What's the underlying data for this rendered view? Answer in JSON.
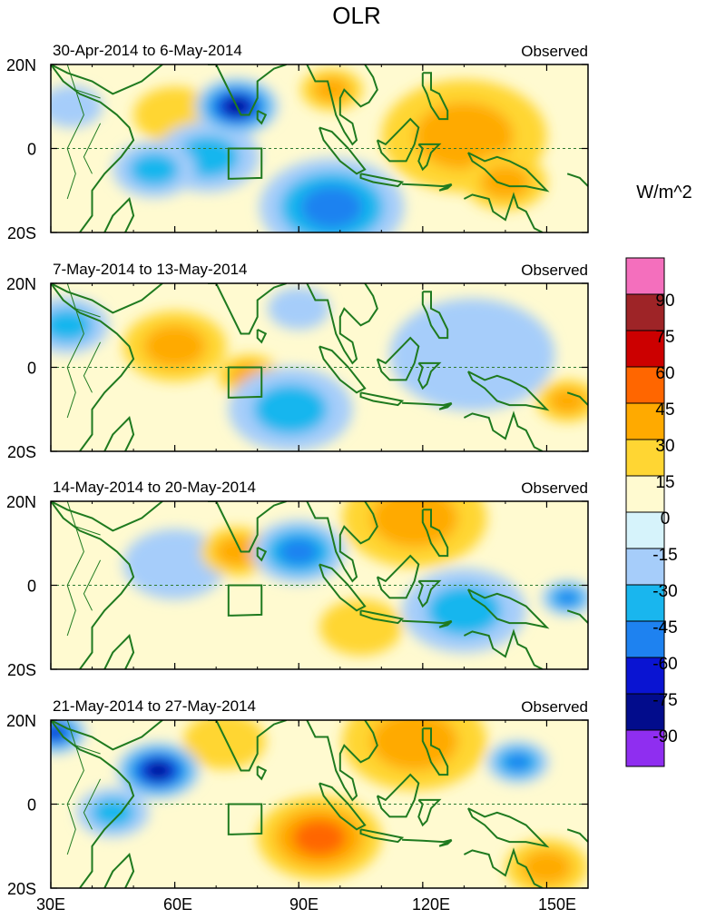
{
  "chart_data": {
    "type": "heatmap",
    "title": "OLR",
    "colorbar_label": "W/m^2",
    "x_ticks": [
      "30E",
      "60E",
      "90E",
      "120E",
      "150E"
    ],
    "x_tick_values": [
      30,
      60,
      90,
      120,
      150
    ],
    "xlim": [
      30,
      160
    ],
    "ylim": [
      -20,
      20
    ],
    "y_ticks": [
      "20N",
      "0",
      "20S"
    ],
    "y_tick_values": [
      20,
      0,
      -20
    ],
    "colorbar_levels": [
      "90",
      "75",
      "60",
      "45",
      "30",
      "15",
      "0",
      "-15",
      "-30",
      "-45",
      "-60",
      "-75",
      "-90"
    ],
    "colorbar_colors": [
      "#f46fbd",
      "#9e2427",
      "#cc0000",
      "#ff6600",
      "#ffaa00",
      "#ffd633",
      "#fffad0",
      "#d6f3fb",
      "#a6cdfa",
      "#19b6ee",
      "#1e82f0",
      "#0a14d2",
      "#020c8c",
      "#8f2ef0"
    ],
    "panels": [
      {
        "label": "30-Apr-2014 to 6-May-2014",
        "tag": "Observed",
        "features": [
          {
            "lon": 75,
            "lat": 10,
            "value": -75,
            "radius": 8
          },
          {
            "lon": 68,
            "lat": -2,
            "value": -30,
            "radius": 10
          },
          {
            "lon": 98,
            "lat": -14,
            "value": -45,
            "radius": 14
          },
          {
            "lon": 55,
            "lat": -5,
            "value": -30,
            "radius": 8
          },
          {
            "lon": 130,
            "lat": 3,
            "value": 30,
            "radius": 16
          },
          {
            "lon": 98,
            "lat": 14,
            "value": 30,
            "radius": 6
          },
          {
            "lon": 60,
            "lat": 8,
            "value": 15,
            "radius": 8
          },
          {
            "lon": 140,
            "lat": -8,
            "value": 30,
            "radius": 8
          },
          {
            "lon": 35,
            "lat": 10,
            "value": -15,
            "radius": 6
          }
        ]
      },
      {
        "label": "7-May-2014 to 13-May-2014",
        "tag": "Observed",
        "features": [
          {
            "lon": 60,
            "lat": 5,
            "value": 30,
            "radius": 10
          },
          {
            "lon": 78,
            "lat": -2,
            "value": 30,
            "radius": 6
          },
          {
            "lon": 88,
            "lat": -10,
            "value": -30,
            "radius": 12
          },
          {
            "lon": 132,
            "lat": 3,
            "value": -15,
            "radius": 16
          },
          {
            "lon": 155,
            "lat": -8,
            "value": 30,
            "radius": 6
          },
          {
            "lon": 34,
            "lat": 10,
            "value": -30,
            "radius": 8
          },
          {
            "lon": 90,
            "lat": 14,
            "value": -15,
            "radius": 6
          }
        ]
      },
      {
        "label": "14-May-2014 to 20-May-2014",
        "tag": "Observed",
        "features": [
          {
            "lon": 90,
            "lat": 8,
            "value": -45,
            "radius": 9
          },
          {
            "lon": 75,
            "lat": 8,
            "value": 30,
            "radius": 7
          },
          {
            "lon": 118,
            "lat": 16,
            "value": 30,
            "radius": 14
          },
          {
            "lon": 130,
            "lat": -6,
            "value": -30,
            "radius": 12
          },
          {
            "lon": 155,
            "lat": -3,
            "value": -45,
            "radius": 5
          },
          {
            "lon": 60,
            "lat": 5,
            "value": -15,
            "radius": 10
          },
          {
            "lon": 105,
            "lat": -10,
            "value": 15,
            "radius": 8
          }
        ]
      },
      {
        "label": "21-May-2014 to 27-May-2014",
        "tag": "Observed",
        "features": [
          {
            "lon": 56,
            "lat": 8,
            "value": -75,
            "radius": 8
          },
          {
            "lon": 31,
            "lat": 17,
            "value": -60,
            "radius": 6
          },
          {
            "lon": 45,
            "lat": -2,
            "value": -30,
            "radius": 7
          },
          {
            "lon": 95,
            "lat": -8,
            "value": 45,
            "radius": 12
          },
          {
            "lon": 118,
            "lat": 15,
            "value": 30,
            "radius": 14
          },
          {
            "lon": 143,
            "lat": 10,
            "value": -45,
            "radius": 6
          },
          {
            "lon": 72,
            "lat": 15,
            "value": 15,
            "radius": 8
          },
          {
            "lon": 150,
            "lat": -15,
            "value": 30,
            "radius": 8
          }
        ]
      }
    ]
  }
}
